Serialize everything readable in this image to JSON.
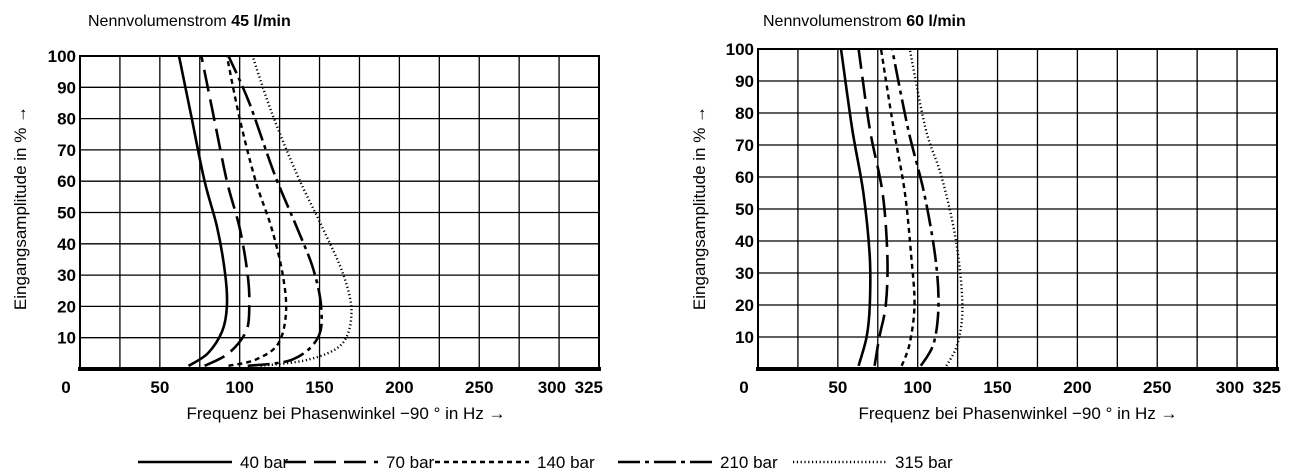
{
  "legend": [
    {
      "label": "40 bar",
      "style": "solid"
    },
    {
      "label": "70 bar",
      "style": "longdash"
    },
    {
      "label": "140 bar",
      "style": "shortdash"
    },
    {
      "label": "210 bar",
      "style": "dashdot"
    },
    {
      "label": "315 bar",
      "style": "dotted"
    }
  ],
  "chart_data": [
    {
      "type": "line",
      "title_prefix": "Nennvolumenstrom",
      "title_value": "45 l/min",
      "xlabel": "Frequenz bei Phasenwinkel −90 ° in Hz →",
      "ylabel": "Eingangsamplitude in % →",
      "xlim": [
        0,
        325
      ],
      "ylim": [
        0,
        100
      ],
      "x_ticks": [
        0,
        50,
        100,
        150,
        200,
        250,
        300,
        325
      ],
      "x_tick_labels": [
        "0",
        "50",
        "100",
        "150",
        "200",
        "250",
        "300",
        "325"
      ],
      "y_ticks": [
        10,
        20,
        30,
        40,
        50,
        60,
        70,
        80,
        90,
        100
      ],
      "y_tick_labels": [
        "10",
        "20",
        "30",
        "40",
        "50",
        "60",
        "70",
        "80",
        "90",
        "100"
      ],
      "grid": true,
      "series": [
        {
          "name": "40 bar",
          "points": [
            [
              68,
              1
            ],
            [
              80,
              5
            ],
            [
              89,
              12
            ],
            [
              92,
              20
            ],
            [
              91,
              30
            ],
            [
              86,
              45
            ],
            [
              78,
              60
            ],
            [
              70,
              80
            ],
            [
              62,
              100
            ]
          ]
        },
        {
          "name": "70 bar",
          "points": [
            [
              78,
              1
            ],
            [
              93,
              5
            ],
            [
              104,
              12
            ],
            [
              106,
              20
            ],
            [
              105,
              30
            ],
            [
              100,
              45
            ],
            [
              92,
              60
            ],
            [
              84,
              80
            ],
            [
              76,
              100
            ]
          ]
        },
        {
          "name": "140 bar",
          "points": [
            [
              93,
              1
            ],
            [
              110,
              3
            ],
            [
              124,
              8
            ],
            [
              129,
              18
            ],
            [
              127,
              30
            ],
            [
              120,
              45
            ],
            [
              110,
              60
            ],
            [
              100,
              80
            ],
            [
              92,
              100
            ]
          ]
        },
        {
          "name": "210 bar",
          "points": [
            [
              105,
              1
            ],
            [
              133,
              3
            ],
            [
              149,
              10
            ],
            [
              151,
              20
            ],
            [
              146,
              32
            ],
            [
              136,
              45
            ],
            [
              122,
              62
            ],
            [
              106,
              85
            ],
            [
              93,
              100
            ]
          ]
        },
        {
          "name": "315 bar",
          "points": [
            [
              113,
              1
            ],
            [
              143,
              3
            ],
            [
              164,
              8
            ],
            [
              170,
              18
            ],
            [
              165,
              30
            ],
            [
              152,
              45
            ],
            [
              136,
              62
            ],
            [
              120,
              82
            ],
            [
              108,
              100
            ]
          ]
        }
      ]
    },
    {
      "type": "line",
      "title_prefix": "Nennvolumenstrom",
      "title_value": "60 l/min",
      "xlabel": "Frequenz bei Phasenwinkel −90 ° in Hz →",
      "ylabel": "Eingangsamplitude in % →",
      "xlim": [
        0,
        325
      ],
      "ylim": [
        0,
        100
      ],
      "x_ticks": [
        0,
        50,
        100,
        150,
        200,
        250,
        300,
        325
      ],
      "x_tick_labels": [
        "0",
        "50",
        "100",
        "150",
        "200",
        "250",
        "300",
        "325"
      ],
      "y_ticks": [
        10,
        20,
        30,
        40,
        50,
        60,
        70,
        80,
        90,
        100
      ],
      "y_tick_labels": [
        "10",
        "20",
        "30",
        "40",
        "50",
        "60",
        "70",
        "80",
        "90",
        "100"
      ],
      "grid": true,
      "series": [
        {
          "name": "40 bar",
          "points": [
            [
              63,
              1
            ],
            [
              68,
              10
            ],
            [
              70,
              20
            ],
            [
              70,
              35
            ],
            [
              66,
              55
            ],
            [
              59,
              75
            ],
            [
              52,
              100
            ]
          ]
        },
        {
          "name": "70 bar",
          "points": [
            [
              73,
              1
            ],
            [
              76,
              10
            ],
            [
              80,
              20
            ],
            [
              81,
              35
            ],
            [
              78,
              55
            ],
            [
              70,
              75
            ],
            [
              63,
              100
            ]
          ]
        },
        {
          "name": "140 bar",
          "points": [
            [
              90,
              1
            ],
            [
              95,
              8
            ],
            [
              98,
              20
            ],
            [
              96,
              35
            ],
            [
              92,
              55
            ],
            [
              85,
              75
            ],
            [
              77,
              100
            ]
          ]
        },
        {
          "name": "210 bar",
          "points": [
            [
              102,
              1
            ],
            [
              110,
              8
            ],
            [
              113,
              20
            ],
            [
              111,
              35
            ],
            [
              104,
              55
            ],
            [
              94,
              75
            ],
            [
              84,
              100
            ]
          ]
        },
        {
          "name": "315 bar",
          "points": [
            [
              118,
              1
            ],
            [
              125,
              8
            ],
            [
              128,
              20
            ],
            [
              124,
              40
            ],
            [
              115,
              60
            ],
            [
              105,
              75
            ],
            [
              95,
              100
            ]
          ]
        }
      ]
    }
  ]
}
